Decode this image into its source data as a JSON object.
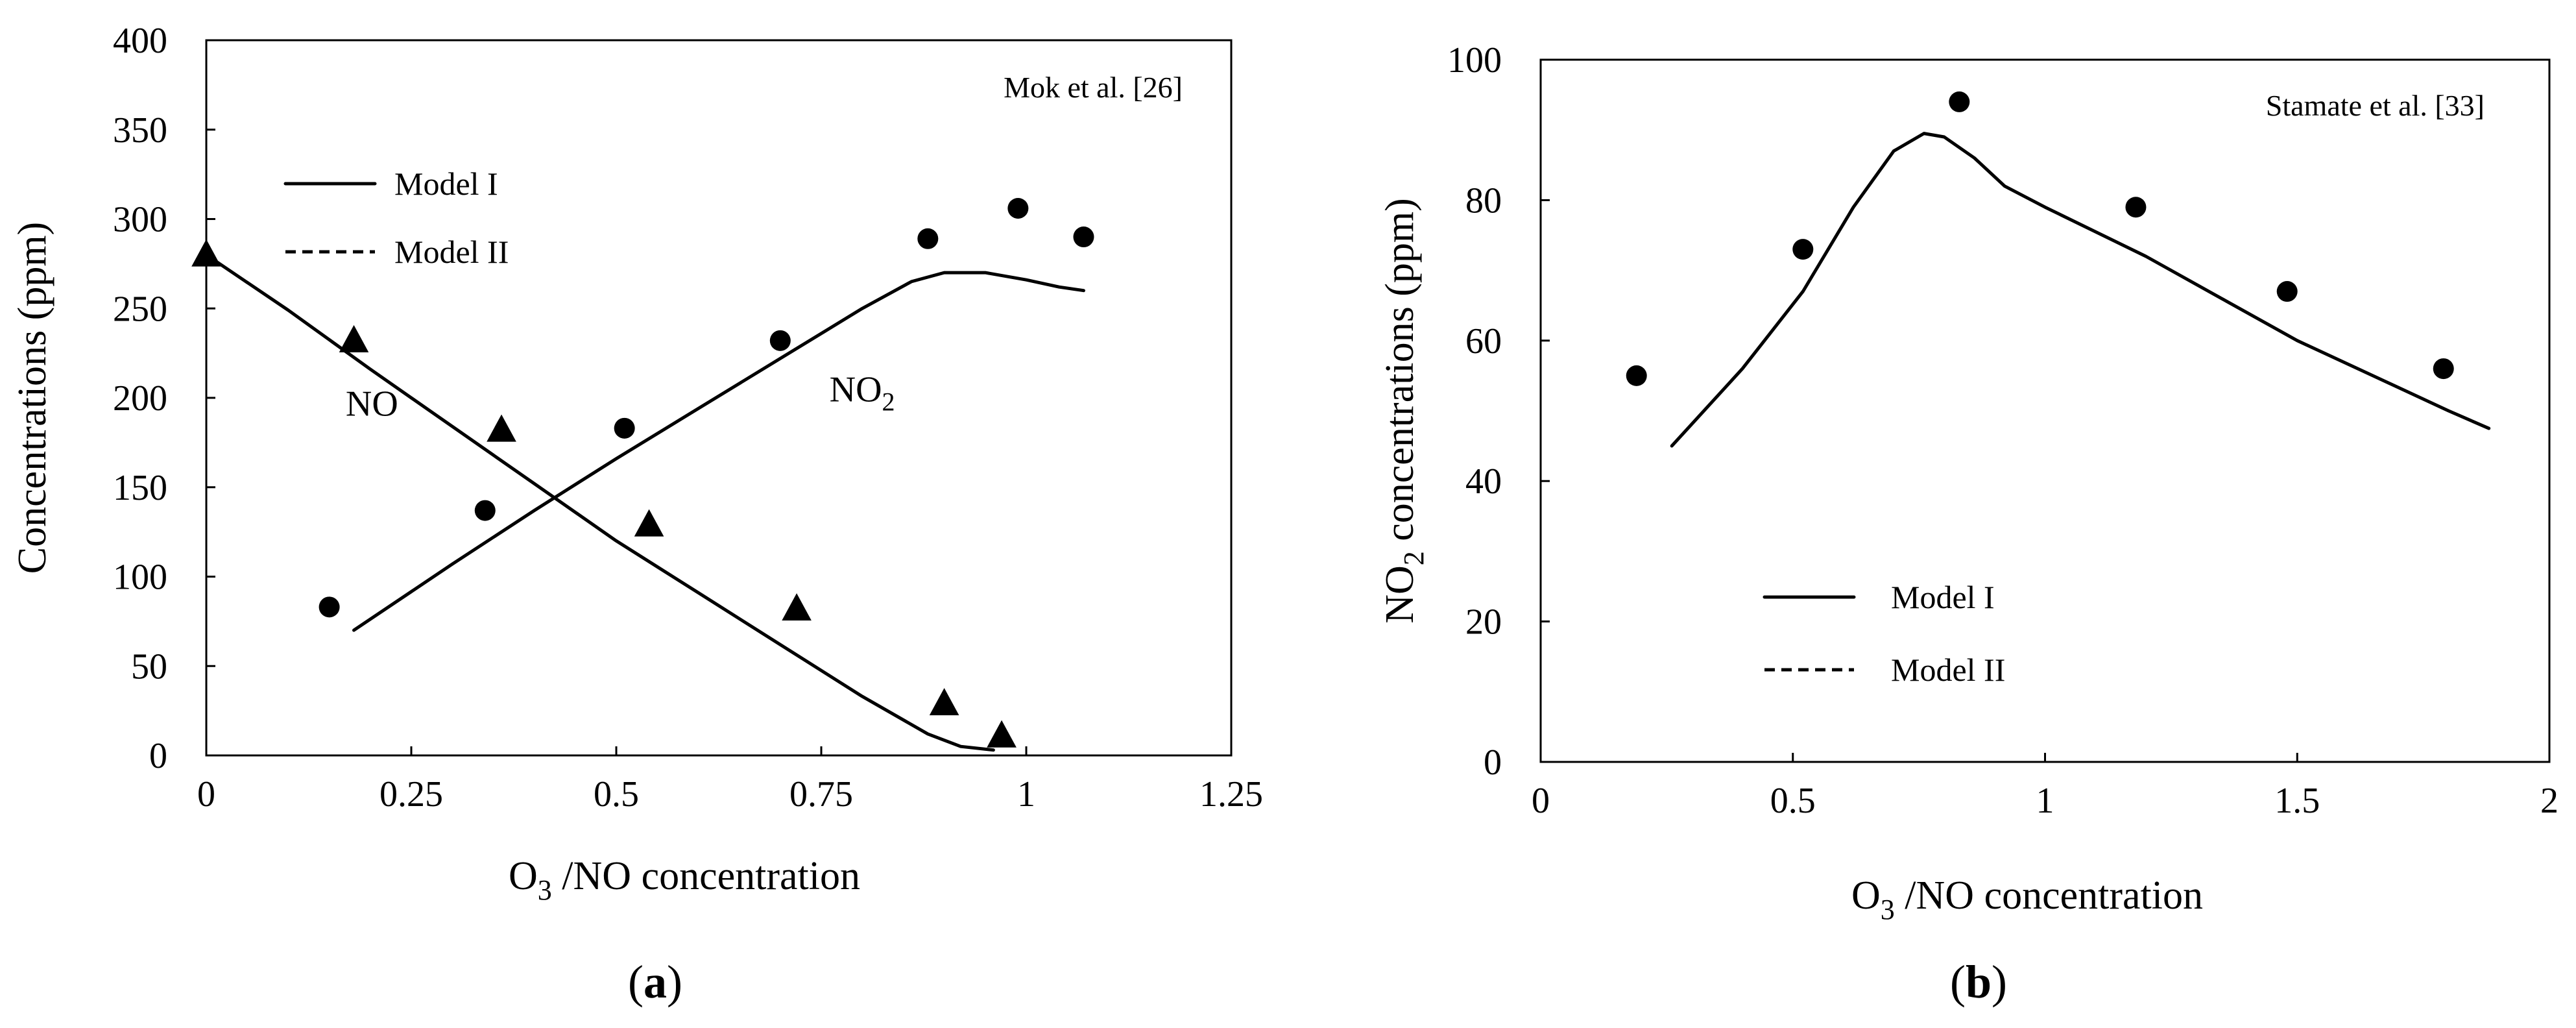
{
  "chart_data": [
    {
      "type": "line",
      "panel_label": "a",
      "citation": "Mok et al. [26]",
      "xlabel": {
        "base": "O",
        "sub": "3",
        "rest": " /NO concentration"
      },
      "ylabel": "Concentrations  (ppm)",
      "xlim": [
        0,
        1.25
      ],
      "ylim": [
        0,
        400
      ],
      "xticks": [
        0,
        0.25,
        0.5,
        0.75,
        1,
        1.25
      ],
      "xtick_labels": [
        "0",
        "0.25",
        "0.5",
        "0.75",
        "1",
        "1.25"
      ],
      "yticks": [
        0,
        50,
        100,
        150,
        200,
        250,
        300,
        350,
        400
      ],
      "ytick_labels": [
        "0",
        "50",
        "100",
        "150",
        "200",
        "250",
        "300",
        "350",
        "400"
      ],
      "legend": [
        {
          "label": "Model I",
          "style": "solid"
        },
        {
          "label": "Model II",
          "style": "dashed"
        }
      ],
      "annotations": [
        {
          "base": "NO",
          "sub": "",
          "x": 0.17,
          "y": 190
        },
        {
          "base": "NO",
          "sub": "2",
          "x": 0.76,
          "y": 198
        }
      ],
      "series": [
        {
          "name": "NO measured",
          "kind": "scatter",
          "marker": "triangle",
          "x": [
            0,
            0.18,
            0.36,
            0.54,
            0.72,
            0.9,
            0.97
          ],
          "y": [
            280,
            232,
            182,
            129,
            82,
            29,
            11
          ]
        },
        {
          "name": "NO2 measured",
          "kind": "scatter",
          "marker": "circle",
          "x": [
            0.15,
            0.34,
            0.51,
            0.7,
            0.88,
            0.99,
            1.07
          ],
          "y": [
            83,
            137,
            183,
            232,
            289,
            306,
            290
          ]
        },
        {
          "name": "NO Model I",
          "kind": "line",
          "style": "solid",
          "x": [
            0,
            0.1,
            0.2,
            0.3,
            0.4,
            0.5,
            0.6,
            0.7,
            0.8,
            0.88,
            0.92,
            0.96
          ],
          "y": [
            280,
            249,
            216,
            184,
            152,
            120,
            91,
            62,
            33,
            12,
            5,
            3
          ]
        },
        {
          "name": "NO2 Model I",
          "kind": "line",
          "style": "solid",
          "x": [
            0.18,
            0.3,
            0.4,
            0.5,
            0.6,
            0.7,
            0.8,
            0.86,
            0.9,
            0.95,
            1.0,
            1.04,
            1.07
          ],
          "y": [
            70,
            107,
            137,
            166,
            194,
            222,
            250,
            265,
            270,
            270,
            266,
            262,
            260
          ]
        }
      ]
    },
    {
      "type": "line",
      "panel_label": "b",
      "citation": "Stamate  et al. [33]",
      "xlabel": {
        "base": "O",
        "sub": "3",
        "rest": " /NO concentration"
      },
      "ylabel": {
        "base": "NO",
        "sub": "2",
        "rest": " concentrations  (ppm)"
      },
      "xlim": [
        0,
        2
      ],
      "ylim": [
        0,
        100
      ],
      "xticks": [
        0,
        0.5,
        1,
        1.5,
        2
      ],
      "xtick_labels": [
        "0",
        "0.5",
        "1",
        "1.5",
        "2"
      ],
      "yticks": [
        0,
        20,
        40,
        60,
        80,
        100
      ],
      "ytick_labels": [
        "0",
        "20",
        "40",
        "60",
        "80",
        "100"
      ],
      "legend": [
        {
          "label": "Model I",
          "style": "solid"
        },
        {
          "label": "Model II",
          "style": "dashed"
        }
      ],
      "series": [
        {
          "name": "NO2 measured",
          "kind": "scatter",
          "marker": "circle",
          "x": [
            0.19,
            0.52,
            0.83,
            1.18,
            1.48,
            1.79
          ],
          "y": [
            55,
            73,
            94,
            79,
            67,
            56
          ]
        },
        {
          "name": "NO2 Model I",
          "kind": "line",
          "style": "solid",
          "x": [
            0.26,
            0.4,
            0.52,
            0.62,
            0.7,
            0.76,
            0.8,
            0.86,
            0.92,
            1.0,
            1.1,
            1.2,
            1.35,
            1.5,
            1.65,
            1.8,
            1.88
          ],
          "y": [
            45,
            56,
            67,
            79,
            87,
            89.5,
            89,
            86,
            82,
            79,
            75.5,
            72,
            66,
            60,
            55,
            50,
            47.5
          ]
        }
      ]
    }
  ]
}
